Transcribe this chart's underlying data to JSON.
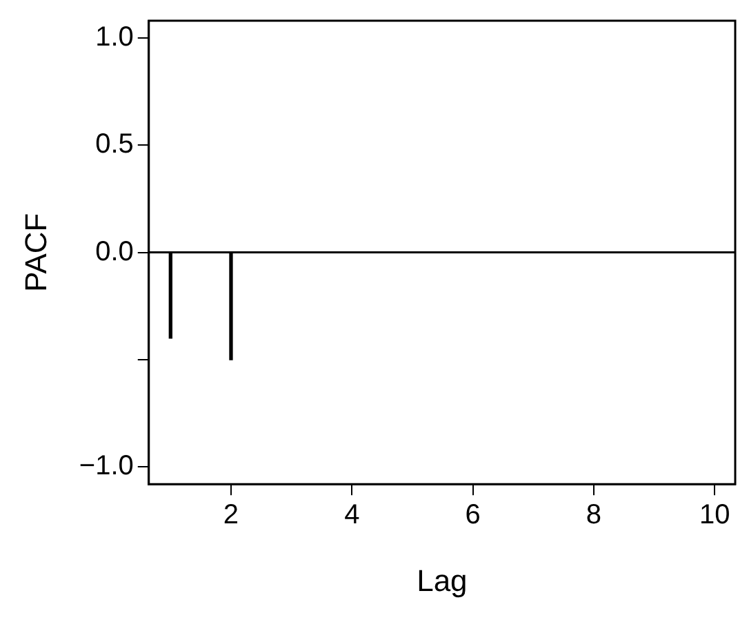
{
  "chart_data": {
    "type": "bar",
    "xlabel": "Lag",
    "ylabel": "PACF",
    "x": [
      1,
      2,
      3,
      4,
      5,
      6,
      7,
      8,
      9,
      10
    ],
    "values": [
      -0.4,
      -0.5,
      0,
      0,
      0,
      0,
      0,
      0,
      0,
      0
    ],
    "color": "#000000",
    "xlim": [
      0.64,
      10.34
    ],
    "xticks": [
      2,
      4,
      6,
      8,
      10
    ],
    "ylim": [
      -1.08,
      1.08
    ],
    "yticks": [
      {
        "value": -1.0,
        "label": "−1.0"
      },
      {
        "value": -0.5,
        "label": null
      },
      {
        "value": 0.0,
        "label": "0.0"
      },
      0.5,
      {
        "value": 1.0,
        "label": "1.0"
      }
    ],
    "ref_lines": [
      {
        "axis": "y",
        "value": 0,
        "color": "#000000"
      }
    ],
    "grid": false,
    "legend": false
  }
}
